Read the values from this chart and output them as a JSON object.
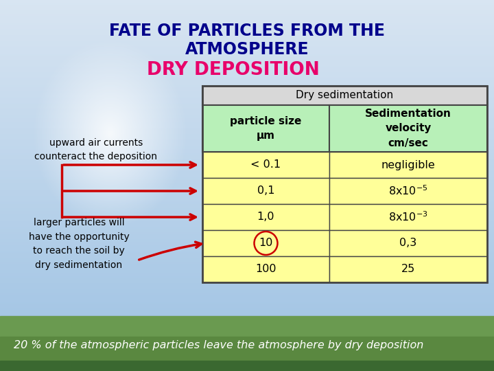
{
  "title_line1": "FATE OF PARTICLES FROM THE",
  "title_line2": "ATMOSPHERE",
  "title_line3": "DRY DEPOSITION",
  "title_color": "#00008B",
  "title_line3_color": "#E8006A",
  "table_header_text": "Dry sedimentation",
  "table_col1_header": "particle size\nμm",
  "table_col2_header": "Sedimentation\nvelocity\ncm/sec",
  "table_header_bg": "#D8D8D8",
  "table_subheader_bg": "#B8F0B8",
  "table_row_bg": "#FFFF99",
  "table_border_color": "#444444",
  "table_rows": [
    [
      "< 0.1",
      "negligible"
    ],
    [
      "0,1",
      "8x10-5"
    ],
    [
      "1,0",
      "8x10-3"
    ],
    [
      "10",
      "0,3"
    ],
    [
      "100",
      "25"
    ]
  ],
  "left_text_upper": "upward air currents\ncounteract the deposition",
  "left_text_lower": "larger particles will\nhave the opportunity\nto reach the soil by\ndry sedimentation",
  "bottom_text": "20 % of the atmospheric particles leave the atmosphere by dry deposition",
  "arrow_color": "#CC0000",
  "bottom_text_color": "#FFFFFF",
  "sky_colors": [
    "#A8CEE8",
    "#C0D8F0",
    "#D0E5F5",
    "#B8D5EC"
  ],
  "grass_color": "#6A9A50"
}
